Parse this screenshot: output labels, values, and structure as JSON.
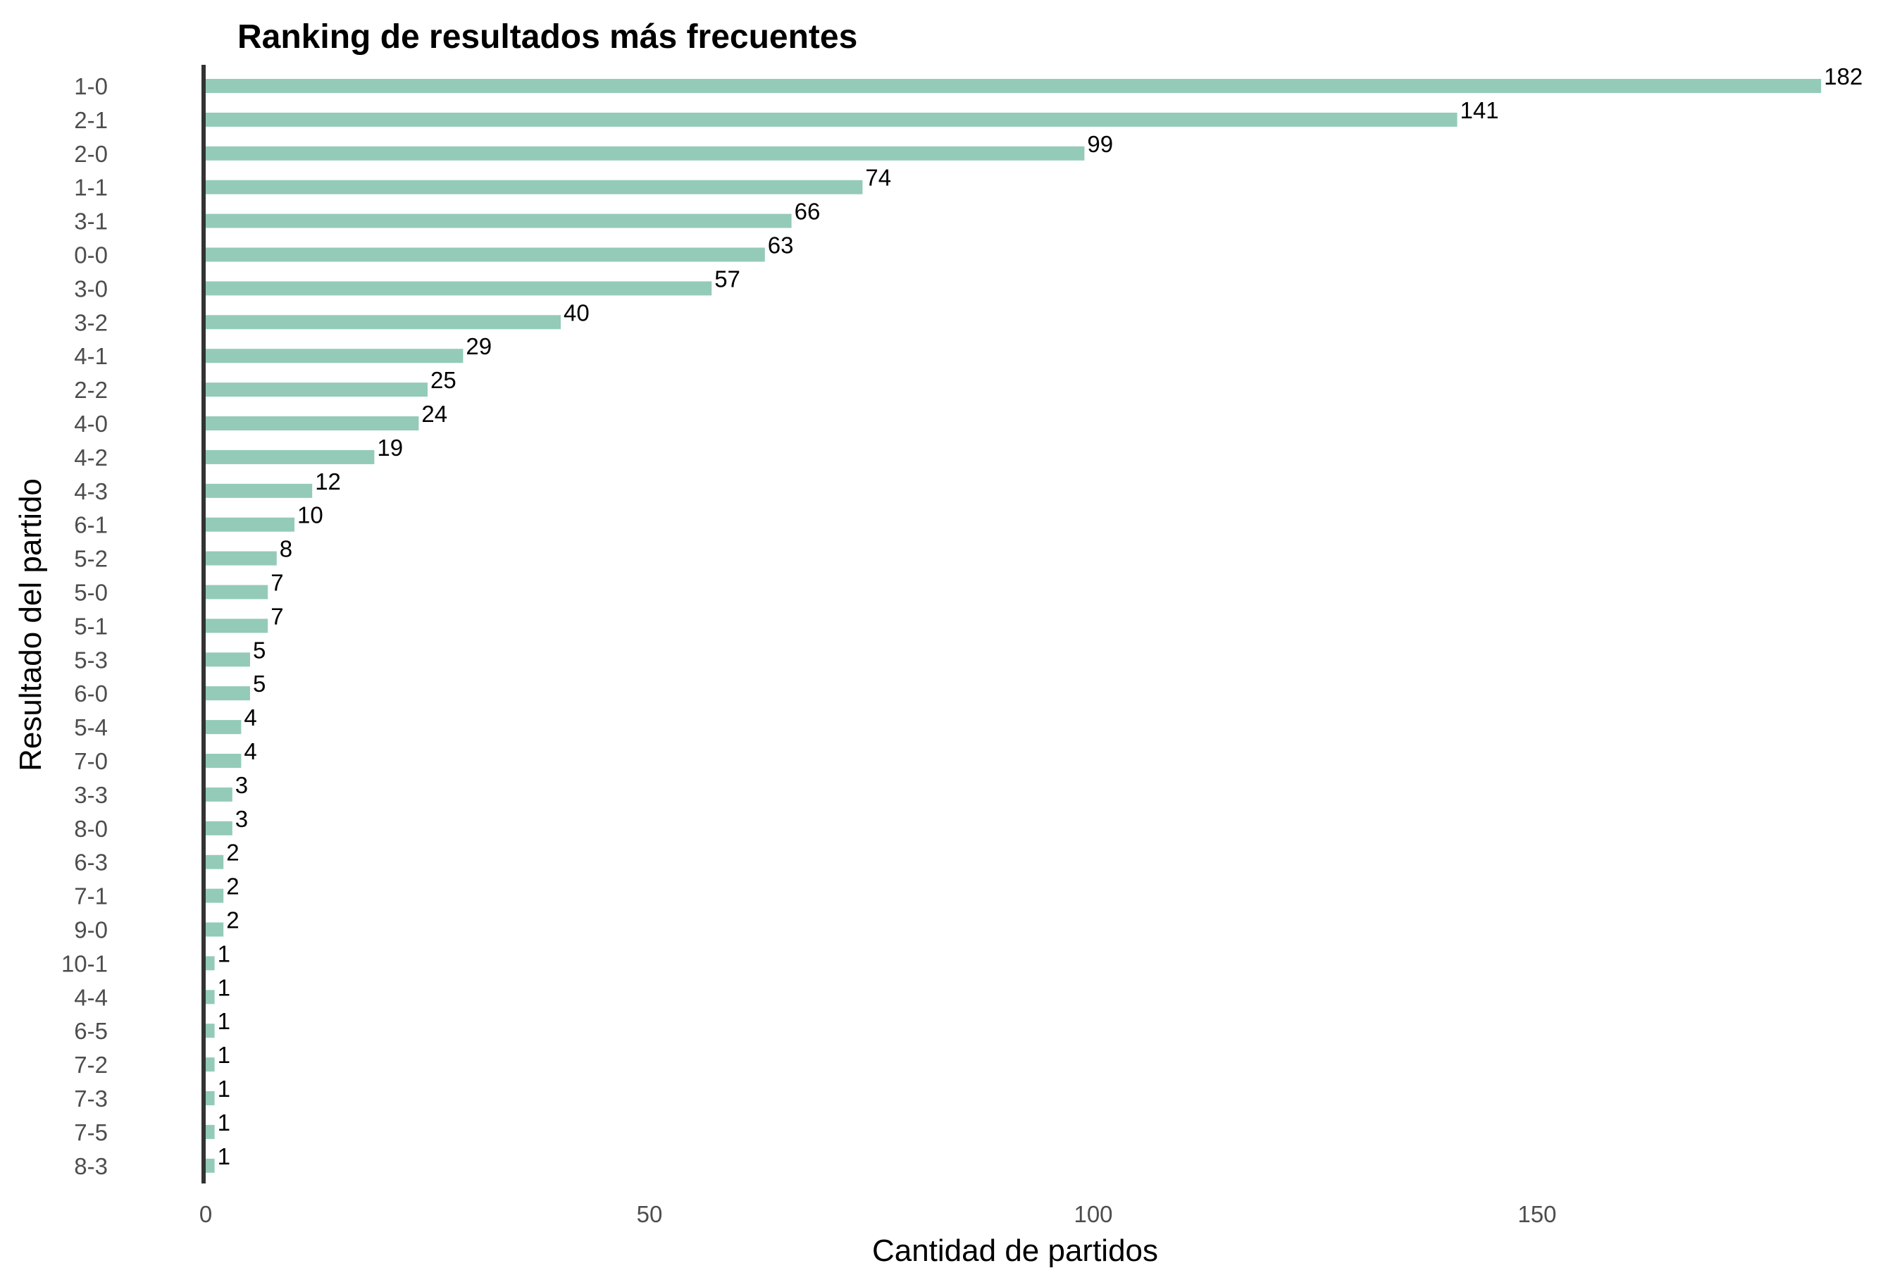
{
  "chart_data": {
    "type": "bar",
    "orientation": "horizontal",
    "title": "Ranking de resultados más frecuentes",
    "xlabel": "Cantidad de partidos",
    "ylabel": "Resultado del partido",
    "categories": [
      "1-0",
      "2-1",
      "2-0",
      "1-1",
      "3-1",
      "0-0",
      "3-0",
      "3-2",
      "4-1",
      "2-2",
      "4-0",
      "4-2",
      "4-3",
      "6-1",
      "5-2",
      "5-0",
      "5-1",
      "5-3",
      "6-0",
      "5-4",
      "7-0",
      "3-3",
      "8-0",
      "6-3",
      "7-1",
      "9-0",
      "10-1",
      "4-4",
      "6-5",
      "7-2",
      "7-3",
      "7-5",
      "8-3"
    ],
    "values": [
      182,
      141,
      99,
      74,
      66,
      63,
      57,
      40,
      29,
      25,
      24,
      19,
      12,
      10,
      8,
      7,
      7,
      5,
      5,
      4,
      4,
      3,
      3,
      2,
      2,
      2,
      1,
      1,
      1,
      1,
      1,
      1,
      1
    ],
    "data_labels": [
      "182",
      "141",
      "99",
      "74",
      "66",
      "63",
      "57",
      "40",
      "29",
      "25",
      "24",
      "19",
      "12",
      "10",
      "8",
      "7",
      "7",
      "5",
      "5",
      "4",
      "4",
      "3",
      "3",
      "2",
      "2",
      "2",
      "1",
      "1",
      "1",
      "1",
      "1",
      "1",
      "1"
    ],
    "xticks": [
      0,
      50,
      100,
      150
    ],
    "xtick_labels": [
      "0",
      "50",
      "100",
      "150"
    ],
    "xlim": [
      0,
      190
    ],
    "grid": false,
    "legend": "none",
    "colors": {
      "bar": "#93cbb8",
      "axis_line": "#333333",
      "tick_text": "#4d4d4d",
      "label_text": "#000000"
    }
  }
}
